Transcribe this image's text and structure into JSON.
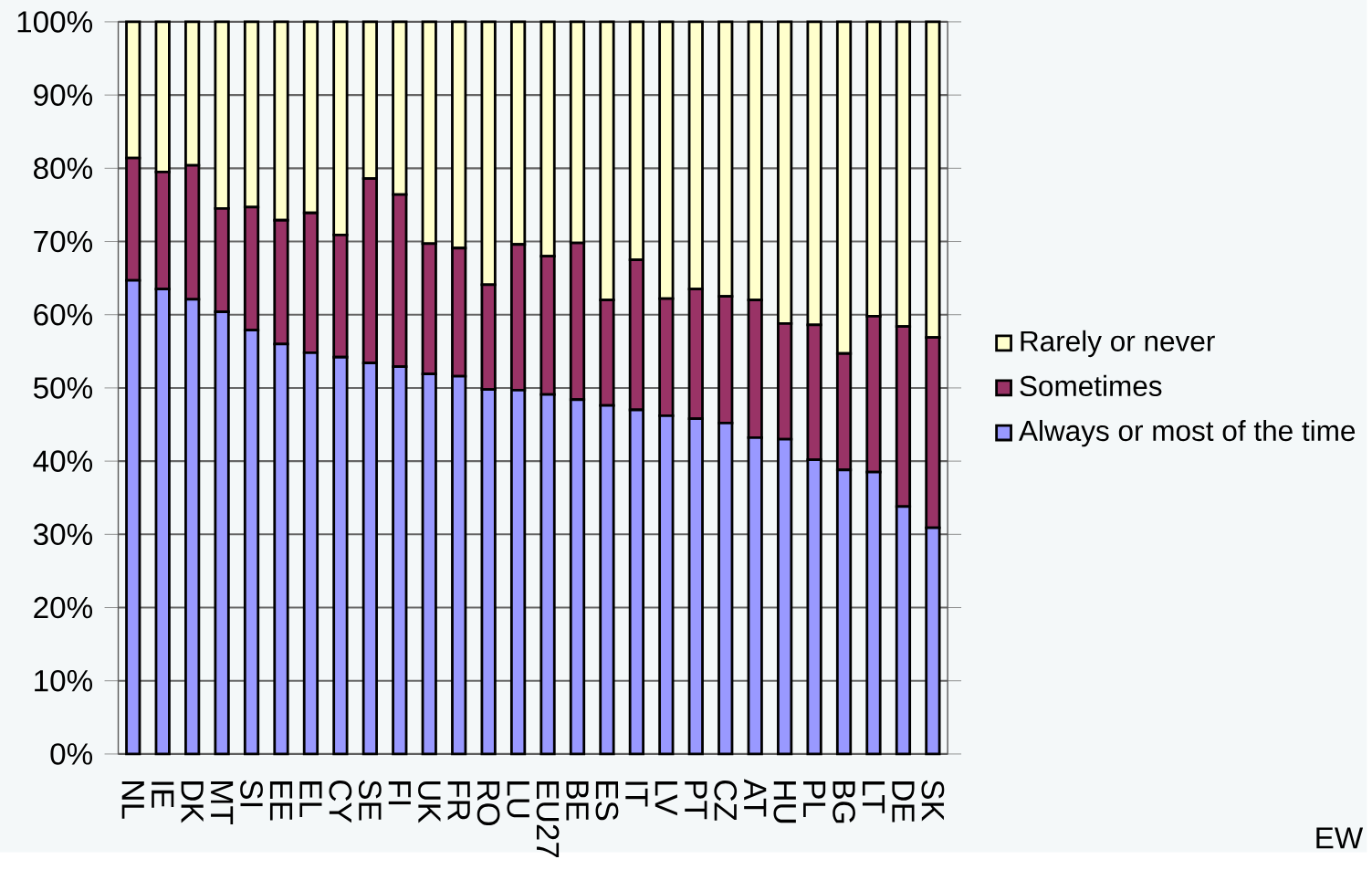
{
  "chart_data": {
    "type": "bar",
    "stacked": true,
    "categories": [
      "NL",
      "IE",
      "DK",
      "MT",
      "SI",
      "EE",
      "EL",
      "CY",
      "SE",
      "FI",
      "UK",
      "FR",
      "RO",
      "LU",
      "EU27",
      "BE",
      "ES",
      "IT",
      "LV",
      "PT",
      "CZ",
      "AT",
      "HU",
      "PL",
      "BG",
      "LT",
      "DE",
      "SK"
    ],
    "series": [
      {
        "name": "Always or most of the time",
        "color": "#9999ff",
        "values": [
          64.7,
          63.5,
          62.1,
          60.4,
          57.9,
          56.0,
          54.8,
          54.2,
          53.4,
          52.9,
          51.9,
          51.6,
          49.8,
          49.7,
          49.1,
          48.4,
          47.6,
          47.0,
          46.2,
          45.8,
          45.2,
          43.2,
          43.0,
          40.2,
          38.8,
          38.5,
          33.8,
          30.9
        ]
      },
      {
        "name": "Sometimes",
        "color": "#993366",
        "values": [
          16.7,
          16.0,
          18.3,
          14.1,
          16.8,
          16.9,
          19.1,
          16.7,
          25.2,
          23.5,
          17.8,
          17.5,
          14.3,
          19.9,
          18.9,
          21.4,
          14.4,
          20.5,
          16.0,
          17.7,
          17.3,
          18.8,
          15.8,
          18.4,
          15.9,
          21.3,
          24.6,
          26.0
        ]
      },
      {
        "name": "Rarely or never",
        "color": "#ffffcc",
        "values": [
          18.6,
          20.5,
          19.6,
          25.5,
          25.3,
          27.1,
          26.1,
          29.1,
          21.4,
          23.6,
          30.3,
          30.9,
          35.9,
          30.4,
          32.0,
          30.2,
          38.0,
          32.5,
          37.8,
          36.5,
          37.5,
          38.0,
          41.2,
          41.4,
          45.3,
          40.2,
          41.6,
          43.1
        ]
      }
    ],
    "ylim": [
      0,
      100
    ],
    "yticks": [
      {
        "value": 0,
        "label": "0%"
      },
      {
        "value": 10,
        "label": "10%"
      },
      {
        "value": 20,
        "label": "20%"
      },
      {
        "value": 30,
        "label": "30%"
      },
      {
        "value": 40,
        "label": "40%"
      },
      {
        "value": 50,
        "label": "50%"
      },
      {
        "value": 60,
        "label": "60%"
      },
      {
        "value": 70,
        "label": "70%"
      },
      {
        "value": 80,
        "label": "80%"
      },
      {
        "value": 90,
        "label": "90%"
      },
      {
        "value": 100,
        "label": "100%"
      }
    ],
    "grid": "y",
    "legend": "right",
    "annotations": [
      "EW"
    ]
  }
}
